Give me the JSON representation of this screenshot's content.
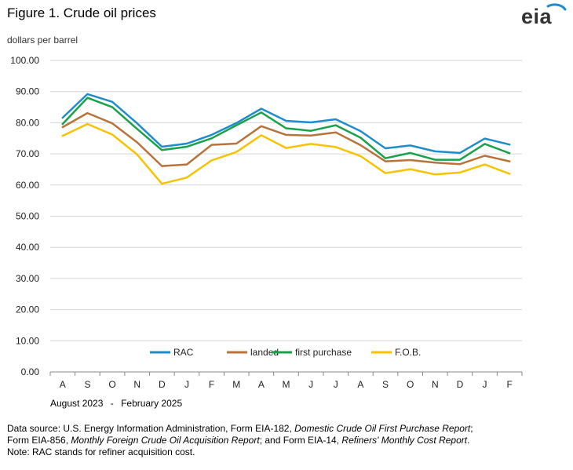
{
  "title": "Figure 1. Crude oil prices",
  "units": "dollars per barrel",
  "logo": "eia",
  "date_range": {
    "start": "August 2023",
    "sep": "-",
    "end": "February 2025"
  },
  "source": {
    "part1": "Data source: U.S. Energy Information Administration, Form EIA-182, ",
    "report1": "Domestic Crude Oil First Purchase Report",
    "part2": ";",
    "part3": "Form EIA-856, ",
    "report2": "Monthly Foreign Crude Oil Acquisition Report",
    "part4": "; and Form EIA-14, ",
    "report3": "Refiners' Monthly Cost Report",
    "part5": ".",
    "note": "Note: RAC stands for refiner acquisition cost."
  },
  "chart_data": {
    "type": "line",
    "title": "Figure 1. Crude oil prices",
    "ylabel": "dollars per barrel",
    "xlabel": "August 2023 - February 2025",
    "ylim": [
      0,
      100
    ],
    "yticks": [
      "0.00",
      "10.00",
      "20.00",
      "30.00",
      "40.00",
      "50.00",
      "60.00",
      "70.00",
      "80.00",
      "90.00",
      "100.00"
    ],
    "categories": [
      "A",
      "S",
      "O",
      "N",
      "D",
      "J",
      "F",
      "M",
      "A",
      "M",
      "J",
      "J",
      "A",
      "S",
      "O",
      "N",
      "D",
      "J",
      "F"
    ],
    "grid": true,
    "legend_position": "bottom-inside",
    "series": [
      {
        "name": "RAC",
        "color": "#1f8dcb",
        "values": [
          81.6,
          89.2,
          86.7,
          79.8,
          72.3,
          73.3,
          76.1,
          79.9,
          84.5,
          80.6,
          80.1,
          81.1,
          77.3,
          71.8,
          72.7,
          70.8,
          70.3,
          74.9,
          73.0
        ]
      },
      {
        "name": "landed",
        "color": "#b8733a",
        "values": [
          78.6,
          83.1,
          79.8,
          73.7,
          66.1,
          66.6,
          72.9,
          73.3,
          78.9,
          76.1,
          75.9,
          76.9,
          72.8,
          67.6,
          68.0,
          67.2,
          66.7,
          69.4,
          67.6
        ]
      },
      {
        "name": "first purchase",
        "color": "#1aa14b",
        "values": [
          79.6,
          88.0,
          85.0,
          78.0,
          71.2,
          72.3,
          75.0,
          79.2,
          83.3,
          78.2,
          77.4,
          79.2,
          75.2,
          68.6,
          70.3,
          68.1,
          68.1,
          73.2,
          70.2
        ]
      },
      {
        "name": "F.O.B.",
        "color": "#f6c300",
        "values": [
          75.8,
          79.6,
          76.2,
          69.8,
          60.4,
          62.4,
          67.9,
          70.6,
          76.0,
          71.9,
          73.2,
          72.2,
          69.3,
          63.8,
          65.1,
          63.4,
          64.0,
          66.6,
          63.6
        ]
      }
    ]
  }
}
